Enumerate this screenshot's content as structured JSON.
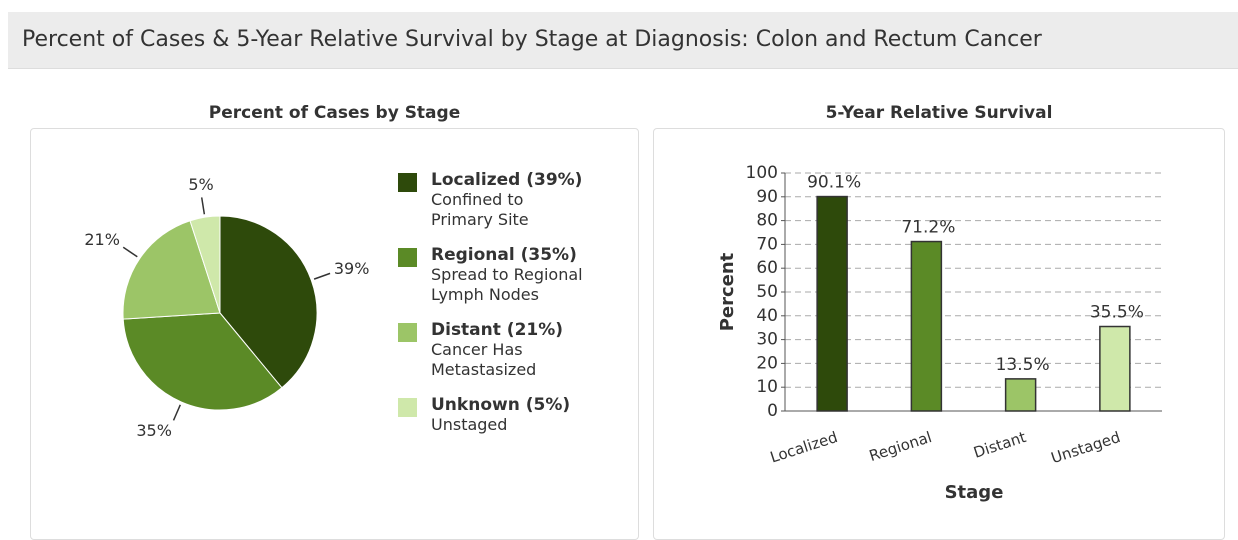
{
  "header": {
    "title": "Percent of Cases & 5-Year Relative Survival by Stage at Diagnosis: Colon and Rectum Cancer"
  },
  "chart_data": [
    {
      "type": "pie",
      "title": "Percent of Cases by Stage",
      "categories": [
        "Localized",
        "Regional",
        "Distant",
        "Unknown"
      ],
      "values": [
        39,
        35,
        21,
        5
      ],
      "value_labels": [
        "39%",
        "35%",
        "21%",
        "5%"
      ],
      "colors": [
        "#2e4a0b",
        "#5b8a26",
        "#9cc567",
        "#cfe8aa"
      ],
      "legend_labels": [
        "Localized (39%)",
        "Regional (35%)",
        "Distant (21%)",
        "Unknown (5%)"
      ],
      "descriptions": [
        [
          "Confined to",
          "Primary Site"
        ],
        [
          "Spread to Regional",
          "Lymph Nodes"
        ],
        [
          "Cancer Has",
          "Metastasized"
        ],
        [
          "Unstaged"
        ]
      ]
    },
    {
      "type": "bar",
      "title": "5-Year Relative Survival",
      "categories": [
        "Localized",
        "Regional",
        "Distant",
        "Unstaged"
      ],
      "values": [
        90.1,
        71.2,
        13.5,
        35.5
      ],
      "value_labels": [
        "90.1%",
        "71.2%",
        "13.5%",
        "35.5%"
      ],
      "colors": [
        "#2e4a0b",
        "#5b8a26",
        "#9cc567",
        "#cfe8aa"
      ],
      "ylabel": "Percent",
      "xlabel": "Stage",
      "ylim": [
        0,
        100
      ],
      "yticks": [
        0,
        10,
        20,
        30,
        40,
        50,
        60,
        70,
        80,
        90,
        100
      ],
      "grid": true
    }
  ]
}
